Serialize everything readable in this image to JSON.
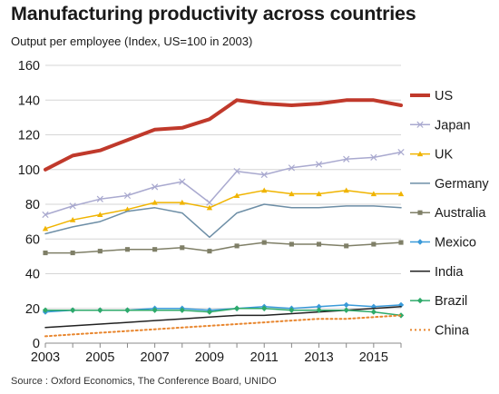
{
  "chart_data": {
    "type": "line",
    "title": "Manufacturing productivity across countries",
    "subtitle": "Output per employee (Index, US=100 in 2003)",
    "source": "Source : Oxford Economics, The Conference Board, UNIDO",
    "xlabel": "",
    "ylabel": "",
    "x": [
      2003,
      2004,
      2005,
      2006,
      2007,
      2008,
      2009,
      2010,
      2011,
      2012,
      2013,
      2014,
      2015,
      2016
    ],
    "xlim": [
      2003,
      2016
    ],
    "ylim": [
      0,
      160
    ],
    "x_ticks": [
      "2003",
      "2005",
      "2007",
      "2009",
      "2011",
      "2013",
      "2015"
    ],
    "y_ticks": [
      "0",
      "20",
      "40",
      "60",
      "80",
      "100",
      "120",
      "140",
      "160"
    ],
    "grid": "horizontal",
    "legend_position": "right",
    "series": [
      {
        "name": "US",
        "color": "#c0392b",
        "marker": "none",
        "dash": "solid",
        "width": 4,
        "values": [
          100,
          108,
          111,
          117,
          123,
          124,
          129,
          140,
          138,
          137,
          138,
          140,
          140,
          137
        ]
      },
      {
        "name": "Japan",
        "color": "#a9a9cf",
        "marker": "x",
        "dash": "solid",
        "width": 1.5,
        "values": [
          74,
          79,
          83,
          85,
          90,
          93,
          81,
          99,
          97,
          101,
          103,
          106,
          107,
          110
        ]
      },
      {
        "name": "UK",
        "color": "#f0b400",
        "marker": "triangle",
        "dash": "solid",
        "width": 1.5,
        "values": [
          66,
          71,
          74,
          77,
          81,
          81,
          78,
          85,
          88,
          86,
          86,
          88,
          86,
          86
        ]
      },
      {
        "name": "Germany",
        "color": "#6d8ea6",
        "marker": "none",
        "dash": "solid",
        "width": 1.5,
        "values": [
          63,
          67,
          70,
          76,
          78,
          75,
          61,
          75,
          80,
          78,
          78,
          79,
          79,
          78
        ]
      },
      {
        "name": "Australia",
        "color": "#7f7f67",
        "marker": "square",
        "dash": "solid",
        "width": 1.5,
        "values": [
          52,
          52,
          53,
          54,
          54,
          55,
          53,
          56,
          58,
          57,
          57,
          56,
          57,
          58
        ]
      },
      {
        "name": "Mexico",
        "color": "#3a9ad9",
        "marker": "diamond",
        "dash": "solid",
        "width": 1.5,
        "values": [
          18,
          19,
          19,
          19,
          20,
          20,
          19,
          20,
          21,
          20,
          21,
          22,
          21,
          22
        ]
      },
      {
        "name": "India",
        "color": "#222222",
        "marker": "none",
        "dash": "solid",
        "width": 1.5,
        "values": [
          9,
          10,
          11,
          12,
          13,
          14,
          15,
          16,
          16,
          17,
          18,
          19,
          20,
          21
        ]
      },
      {
        "name": "Brazil",
        "color": "#2eaa6a",
        "marker": "diamond",
        "dash": "solid",
        "width": 1.5,
        "values": [
          19,
          19,
          19,
          19,
          19,
          19,
          18,
          20,
          20,
          19,
          19,
          19,
          18,
          16
        ]
      },
      {
        "name": "China",
        "color": "#e8862e",
        "marker": "none",
        "dash": "dotted",
        "width": 2,
        "values": [
          4,
          5,
          6,
          7,
          8,
          9,
          10,
          11,
          12,
          13,
          14,
          14,
          15,
          16
        ]
      }
    ]
  }
}
